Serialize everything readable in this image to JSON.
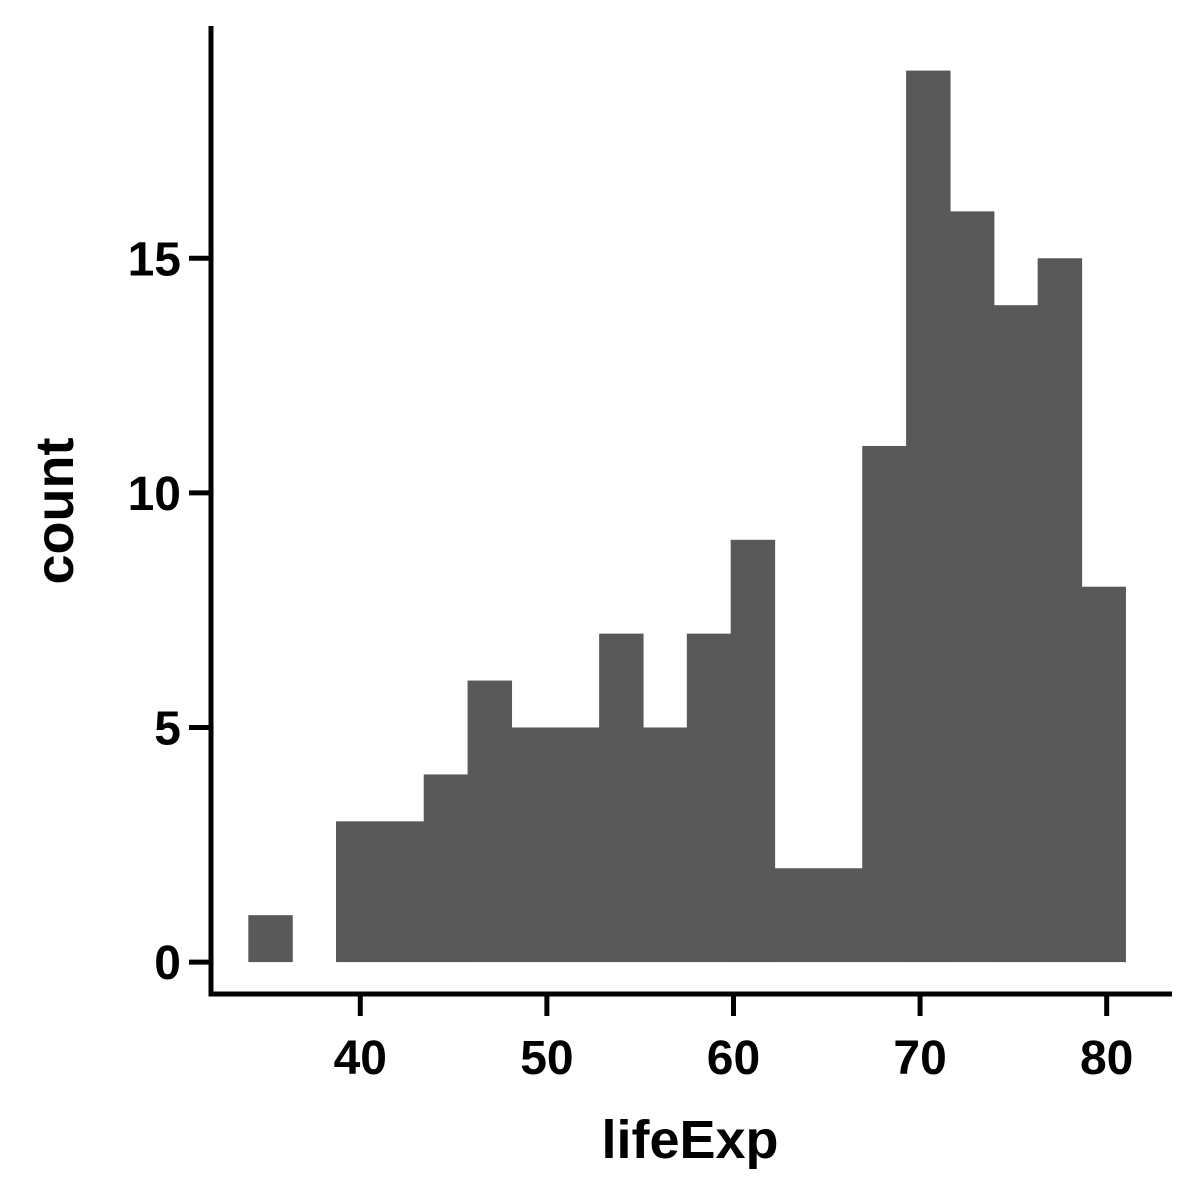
{
  "chart_data": {
    "type": "bar",
    "subtype": "histogram",
    "title": "",
    "xlabel": "lifeExp",
    "ylabel": "count",
    "bins": [
      {
        "x0": 34.0,
        "x1": 36.35,
        "count": 1
      },
      {
        "x0": 36.35,
        "x1": 38.7,
        "count": 0
      },
      {
        "x0": 38.7,
        "x1": 41.05,
        "count": 3
      },
      {
        "x0": 41.05,
        "x1": 43.4,
        "count": 3
      },
      {
        "x0": 43.4,
        "x1": 45.75,
        "count": 4
      },
      {
        "x0": 45.75,
        "x1": 48.1,
        "count": 6
      },
      {
        "x0": 48.1,
        "x1": 50.45,
        "count": 5
      },
      {
        "x0": 50.45,
        "x1": 52.8,
        "count": 5
      },
      {
        "x0": 52.8,
        "x1": 55.15,
        "count": 7
      },
      {
        "x0": 55.15,
        "x1": 57.5,
        "count": 5
      },
      {
        "x0": 57.5,
        "x1": 59.85,
        "count": 7
      },
      {
        "x0": 59.85,
        "x1": 62.2,
        "count": 9
      },
      {
        "x0": 62.2,
        "x1": 64.55,
        "count": 2
      },
      {
        "x0": 64.55,
        "x1": 66.9,
        "count": 2
      },
      {
        "x0": 66.9,
        "x1": 69.25,
        "count": 11
      },
      {
        "x0": 69.25,
        "x1": 71.6,
        "count": 19
      },
      {
        "x0": 71.6,
        "x1": 73.95,
        "count": 16
      },
      {
        "x0": 73.95,
        "x1": 76.3,
        "count": 14
      },
      {
        "x0": 76.3,
        "x1": 78.65,
        "count": 15
      },
      {
        "x0": 78.65,
        "x1": 81.0,
        "count": 8
      }
    ],
    "x_ticks": [
      40,
      50,
      60,
      70,
      80
    ],
    "y_ticks": [
      0,
      5,
      10,
      15
    ],
    "xlim": [
      32.0,
      83.5
    ],
    "ylim": [
      -0.68,
      19.95
    ],
    "bar_color": "#595959",
    "grid": false,
    "legend": "none"
  }
}
